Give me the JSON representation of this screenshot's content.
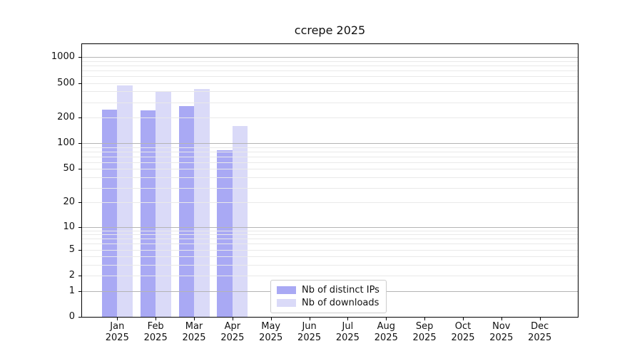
{
  "chart_data": {
    "type": "bar",
    "title": "ccrepe 2025",
    "x_months": [
      "Jan",
      "Feb",
      "Mar",
      "Apr",
      "May",
      "Jun",
      "Jul",
      "Aug",
      "Sep",
      "Oct",
      "Nov",
      "Dec"
    ],
    "x_year": "2025",
    "y_scale": "log10(1+value), 0 at baseline",
    "y_tick_values": [
      0,
      1,
      2,
      5,
      10,
      20,
      50,
      100,
      200,
      500,
      1000
    ],
    "y_major_gridlines": [
      1,
      10,
      100,
      1000
    ],
    "y_minor_gridlines": [
      2,
      3,
      4,
      5,
      6,
      7,
      8,
      9,
      20,
      30,
      40,
      50,
      60,
      70,
      80,
      90,
      200,
      300,
      400,
      500,
      600,
      700,
      800,
      900
    ],
    "ylim": [
      0,
      1450
    ],
    "grid": "horizontal, drawn over bars",
    "series": [
      {
        "name": "Nb of distinct IPs",
        "color": "#a9a9f4",
        "values": [
          247,
          238,
          270,
          82,
          0,
          0,
          0,
          0,
          0,
          0,
          0,
          0
        ]
      },
      {
        "name": "Nb of downloads",
        "color": "#dadaf8",
        "values": [
          465,
          398,
          427,
          158,
          0,
          0,
          0,
          0,
          0,
          0,
          0,
          0
        ]
      }
    ],
    "legend": {
      "position": "inside plot, lower middle",
      "border_color": "#cccccc",
      "background": "#ffffff"
    },
    "colors": {
      "major_grid": "#b4b4b4",
      "minor_grid": "#e9e9e9",
      "spine": "#000000",
      "text": "#111111",
      "background": "#ffffff"
    }
  }
}
